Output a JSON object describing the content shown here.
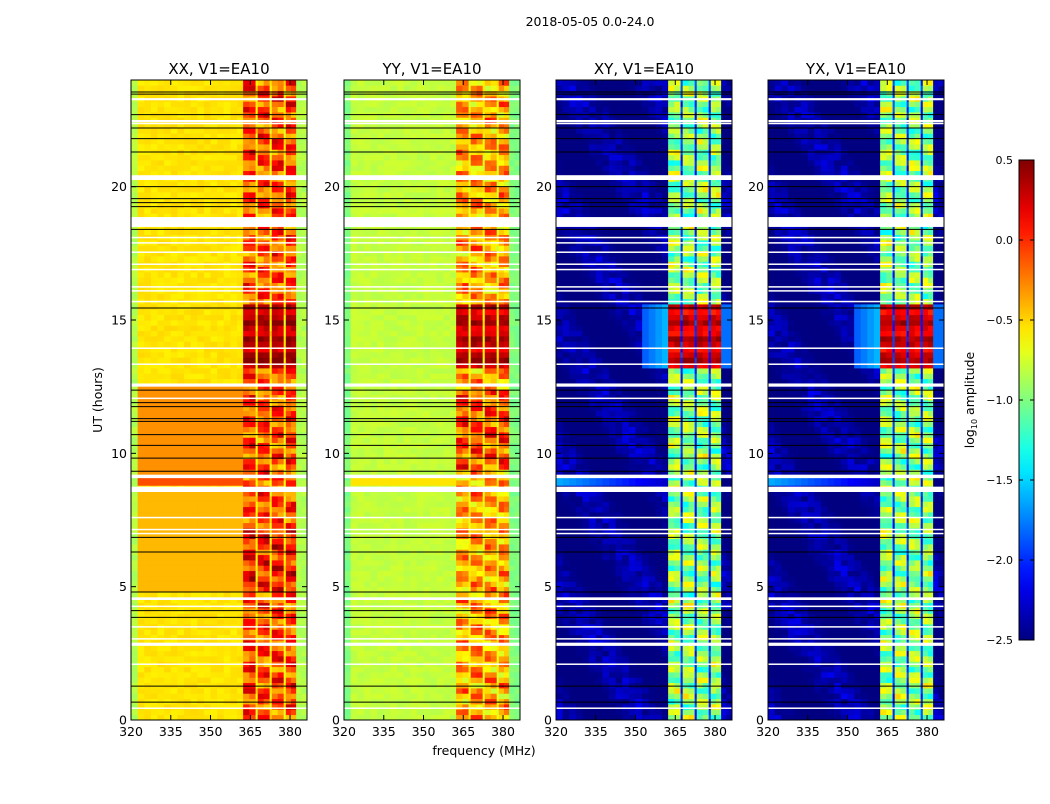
{
  "chart_data": {
    "type": "heatmap",
    "title": "2018-05-05 0.0-24.0",
    "xlabel": "frequency (MHz)",
    "ylabel": "UT (hours)",
    "xlim": [
      320,
      386.4
    ],
    "ylim": [
      0,
      24
    ],
    "xticks": [
      "320",
      "335",
      "350",
      "365",
      "380"
    ],
    "xtick_values": [
      320,
      335,
      350,
      365,
      380
    ],
    "yticks": [
      "0",
      "5",
      "10",
      "15",
      "20"
    ],
    "ytick_values": [
      0,
      5,
      10,
      15,
      20
    ],
    "colorbar": {
      "label_main": "log",
      "label_sub": "10",
      "label_rest": " amplitude",
      "range": [
        -2.5,
        0.5
      ],
      "colormap": "jet",
      "ticks": [
        "0.5",
        "0.0",
        "−0.5",
        "−1.0",
        "−1.5",
        "−2.0",
        "−2.5"
      ],
      "tick_values": [
        0.5,
        0.0,
        -0.5,
        -1.0,
        -1.5,
        -2.0,
        -2.5
      ]
    },
    "subbands_mhz": [
      [
        362.3,
        367.0
      ],
      [
        367.8,
        372.3
      ],
      [
        373.1,
        377.6
      ],
      [
        378.4,
        382.3
      ]
    ],
    "panels": [
      {
        "title": "XX, V1=EA10",
        "background_level": -0.55,
        "band_level": -0.1,
        "gap_level": -0.6,
        "active_level": 0.35,
        "edge_level": -0.85
      },
      {
        "title": "YY, V1=EA10",
        "background_level": -0.8,
        "band_level": -0.35,
        "gap_level": -0.65,
        "active_level": 0.3,
        "edge_level": -1.0
      },
      {
        "title": "XY, V1=EA10",
        "background_level": -2.45,
        "band_level": -0.95,
        "gap_level": -2.0,
        "active_level": 0.25,
        "edge_level": -2.45
      },
      {
        "title": "YX, V1=EA10",
        "background_level": -2.45,
        "band_level": -0.95,
        "gap_level": -2.0,
        "active_level": 0.25,
        "edge_level": -2.45
      }
    ],
    "active_period_hours": [
      13.0,
      15.4
    ],
    "flagged_white_hours": [
      [
        23.24,
        23.32
      ],
      [
        22.42,
        22.5
      ],
      [
        22.34,
        22.4
      ],
      [
        20.25,
        20.43
      ],
      [
        18.49,
        18.86
      ],
      [
        18.08,
        18.12
      ],
      [
        17.88,
        17.92
      ],
      [
        17.53,
        17.57
      ],
      [
        17.08,
        17.12
      ],
      [
        16.88,
        16.92
      ],
      [
        16.23,
        16.27
      ],
      [
        16.08,
        16.12
      ],
      [
        15.68,
        15.72
      ],
      [
        13.93,
        13.97
      ],
      [
        13.33,
        13.37
      ],
      [
        12.5,
        12.62
      ],
      [
        12.05,
        12.09
      ],
      [
        9.07,
        9.2
      ],
      [
        8.55,
        8.75
      ],
      [
        7.58,
        7.62
      ],
      [
        7.13,
        7.17
      ],
      [
        6.98,
        7.02
      ],
      [
        4.5,
        4.6
      ],
      [
        4.25,
        4.29
      ],
      [
        3.48,
        3.52
      ],
      [
        3.03,
        3.07
      ],
      [
        2.78,
        2.9
      ],
      [
        2.08,
        2.12
      ],
      [
        0.43,
        0.47
      ]
    ],
    "black_line_hours": [
      23.55,
      23.47,
      22.7,
      22.2,
      21.8,
      21.3,
      20.0,
      19.55,
      19.4,
      19.25,
      18.4,
      15.45,
      12.37,
      11.9,
      11.75,
      11.3,
      11.2,
      10.7,
      10.3,
      9.82,
      9.33,
      6.85,
      6.3,
      4.8,
      4.1,
      3.85,
      1.27,
      0.67
    ]
  }
}
